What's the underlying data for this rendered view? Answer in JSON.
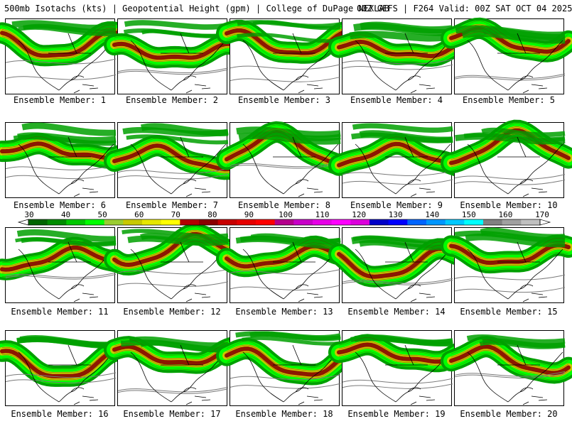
{
  "header": {
    "title_left": "500mb Isotachs (kts) | Geopotential Height (gpm) | College of DuPage NEXLAB",
    "title_right": "00Z GEFS | F264 Valid: 00Z SAT OCT 04 2025"
  },
  "members": [
    {
      "label": "Ensemble Member: 1"
    },
    {
      "label": "Ensemble Member: 2"
    },
    {
      "label": "Ensemble Member: 3"
    },
    {
      "label": "Ensemble Member: 4"
    },
    {
      "label": "Ensemble Member: 5"
    },
    {
      "label": "Ensemble Member: 6"
    },
    {
      "label": "Ensemble Member: 7"
    },
    {
      "label": "Ensemble Member: 8"
    },
    {
      "label": "Ensemble Member: 9"
    },
    {
      "label": "Ensemble Member: 10"
    },
    {
      "label": "Ensemble Member: 11"
    },
    {
      "label": "Ensemble Member: 12"
    },
    {
      "label": "Ensemble Member: 13"
    },
    {
      "label": "Ensemble Member: 14"
    },
    {
      "label": "Ensemble Member: 15"
    },
    {
      "label": "Ensemble Member: 16"
    },
    {
      "label": "Ensemble Member: 17"
    },
    {
      "label": "Ensemble Member: 18"
    },
    {
      "label": "Ensemble Member: 19"
    },
    {
      "label": "Ensemble Member: 20"
    }
  ],
  "colorbar": {
    "labels": [
      "30",
      "40",
      "50",
      "60",
      "70",
      "80",
      "90",
      "100",
      "110",
      "120",
      "130",
      "140",
      "150",
      "160",
      "170"
    ],
    "colors": [
      "#006400",
      "#008c00",
      "#00c800",
      "#00ff00",
      "#9acd32",
      "#c8c800",
      "#e6e600",
      "#ffff00",
      "#b40000",
      "#8b0000",
      "#c80000",
      "#e60000",
      "#ff0000",
      "#b4008c",
      "#c800c8",
      "#e600e6",
      "#ff00ff",
      "#dc00dc",
      "#0000c8",
      "#0000ff",
      "#0064ff",
      "#0096ff",
      "#00c8ff",
      "#00ffff",
      "#808080",
      "#a0a0a0",
      "#c0c0c0"
    ]
  },
  "legend_colors": {
    "jet_fill": "#00a000",
    "jet_light": "#00ff00",
    "jet_yellow": "#c8c800",
    "jet_red": "#8b0000",
    "contour": "#7a7a7a",
    "coast": "#000000"
  }
}
